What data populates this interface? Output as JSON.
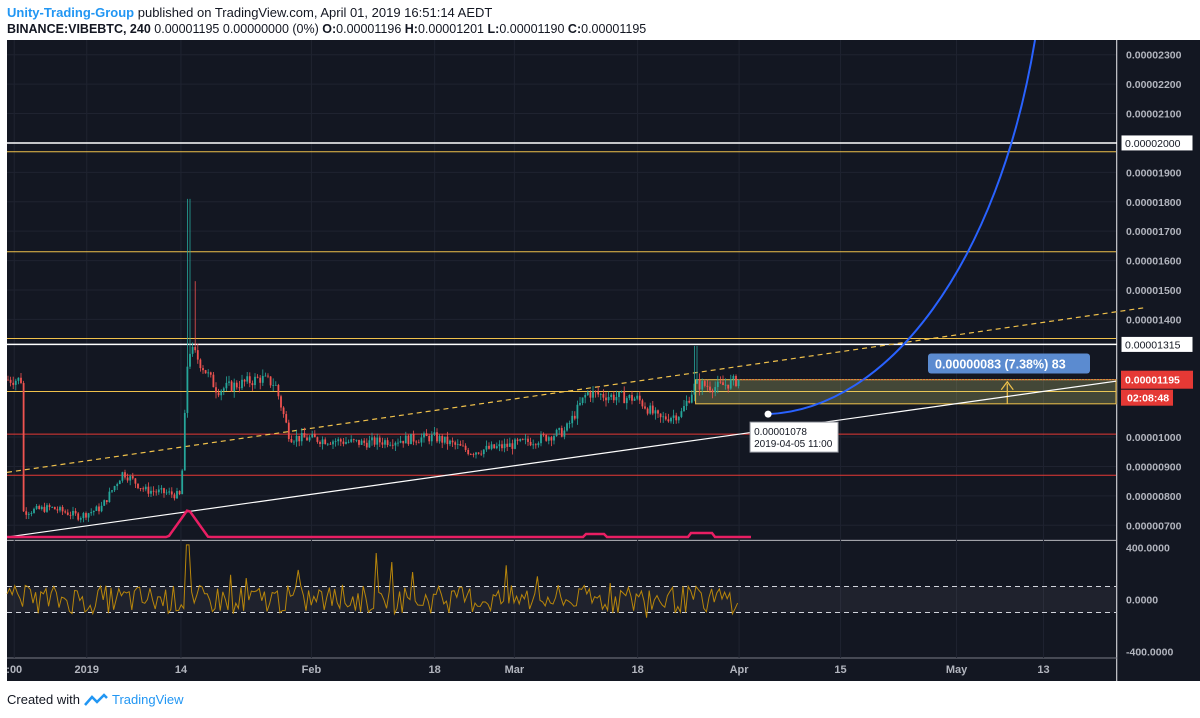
{
  "header": {
    "author": "Unity-Trading-Group",
    "published": "published on TradingView.com, April 01, 2019 16:51:14 AEDT",
    "symbol": "BINANCE:VIBEBTC, 240",
    "last": "0.00001195",
    "change": "0.00000000 (0%)",
    "ohlc": {
      "o_label": "O:",
      "o": "0.00001196",
      "h_label": "H:",
      "h": "0.00001201",
      "l_label": "L:",
      "l": "0.00001190",
      "c_label": "C:",
      "c": "0.00001195"
    }
  },
  "footer": {
    "created_with": "Created with",
    "brand": "TradingView"
  },
  "colors": {
    "background": "#131722",
    "candle_up": "#26a69a",
    "candle_down": "#ef5350",
    "horizontal_level": "#f0c14b",
    "support_level": "#e53935",
    "trendline": "#ffffff",
    "dashed_trendline": "#f0c14b",
    "curve": "#2962ff",
    "volume_ma": "#e91e63",
    "oscillator": "#b8860b",
    "price_tag": "#e53935",
    "measure_label": "#5b8bd0"
  },
  "chart_data": {
    "type": "candlestick",
    "x_ticks": [
      ":00",
      "2019",
      "14",
      "Feb",
      "18",
      "Mar",
      "18",
      "Apr",
      "15",
      "May",
      "13"
    ],
    "y_ticks": [
      "0.00002300",
      "0.00002200",
      "0.00002100",
      "0.00001900",
      "0.00001800",
      "0.00001700",
      "0.00001600",
      "0.00001500",
      "0.00001400",
      "0.00001000",
      "0.00000900",
      "0.00000800",
      "0.00000700"
    ],
    "ylim": [
      6.5e-06,
      2.35e-05
    ],
    "candles_by_day": [
      [
        "2018-12-23",
        7.45e-06
      ],
      [
        "2018-12-27",
        7.6e-06
      ],
      [
        "2018-12-31",
        7.3e-06
      ],
      [
        "2019-01-03",
        7.6e-06
      ],
      [
        "2019-01-06",
        8.8e-06
      ],
      [
        "2019-01-09",
        8.2e-06
      ],
      [
        "2019-01-12",
        8.1e-06
      ],
      [
        "2019-01-14",
        8e-06
      ],
      [
        "2019-01-15",
        1.3e-05
      ],
      [
        "2019-01-16",
        1.28e-05
      ],
      [
        "2019-01-19",
        1.16e-05
      ],
      [
        "2019-01-22",
        1.18e-05
      ],
      [
        "2019-01-25",
        1.2e-05
      ],
      [
        "2019-01-27",
        1.18e-05
      ],
      [
        "2019-01-29",
        1e-05
      ],
      [
        "2019-02-03",
        9.9e-06
      ],
      [
        "2019-02-08",
        9.8e-06
      ],
      [
        "2019-02-13",
        9.9e-06
      ],
      [
        "2019-02-18",
        1e-05
      ],
      [
        "2019-02-23",
        9.5e-06
      ],
      [
        "2019-02-28",
        9.7e-06
      ],
      [
        "2019-03-04",
        9.9e-06
      ],
      [
        "2019-03-08",
        1.02e-05
      ],
      [
        "2019-03-11",
        1.15e-05
      ],
      [
        "2019-03-14",
        1.14e-05
      ],
      [
        "2019-03-18",
        1.13e-05
      ],
      [
        "2019-03-21",
        1.06e-05
      ],
      [
        "2019-03-24",
        1.08e-05
      ],
      [
        "2019-03-26",
        1.18e-05
      ],
      [
        "2019-03-29",
        1.17e-05
      ],
      [
        "2019-04-01",
        1.195e-05
      ]
    ],
    "horizontal_levels": [
      1.97e-05,
      1.63e-05,
      1.335e-05,
      1.155e-05
    ],
    "support_levels": [
      1.01e-05,
      8.7e-06
    ],
    "white_levels": [
      "0.00002000",
      "0.00001315"
    ],
    "measure": {
      "label": "0.00000083 (7.38%) 83",
      "from": 1.113e-05,
      "to": 1.195e-05
    },
    "point_label": {
      "price": "0.00001078",
      "time": "2019-04-05 11:00"
    },
    "last_price": "0.00001195",
    "countdown": "02:08:48",
    "oscillator": {
      "y_ticks": [
        "400.0000",
        "0.0000",
        "-400.0000"
      ],
      "ylim": [
        -450,
        450
      ],
      "upper_band": 100,
      "lower_band": -100
    }
  }
}
